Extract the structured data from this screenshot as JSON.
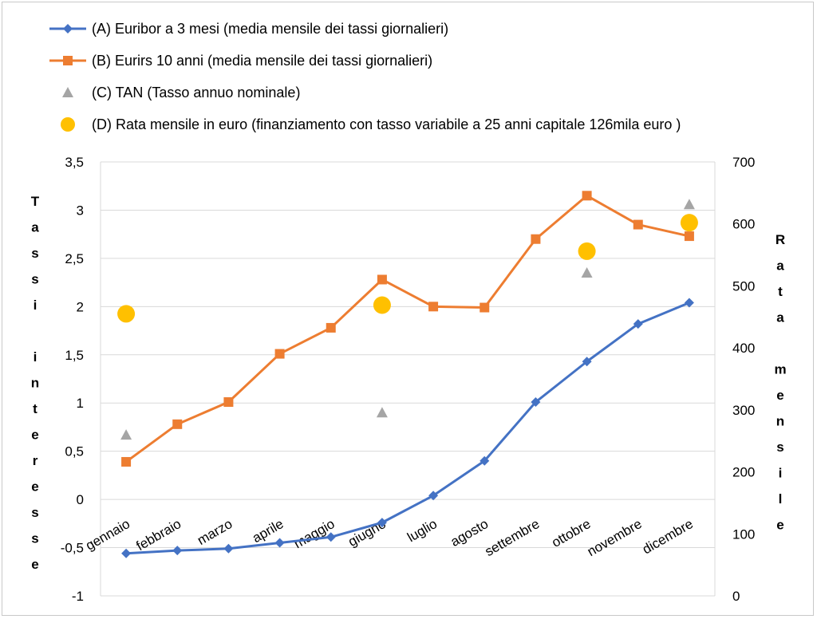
{
  "chart_data": {
    "type": "line",
    "categories": [
      "gennaio",
      "febbraio",
      "marzo",
      "aprile",
      "maggio",
      "giugno",
      "luglio",
      "agosto",
      "settembre",
      "ottobre",
      "novembre",
      "dicembre"
    ],
    "left_axis": {
      "label": "Tassi interesse",
      "ylim": [
        -1,
        3.5
      ],
      "ticks": [
        "3,5",
        "3",
        "2,5",
        "2",
        "1,5",
        "1",
        "0,5",
        "0",
        "-0,5",
        "-1"
      ]
    },
    "right_axis": {
      "label": "Rata mensile",
      "ylim": [
        0,
        700
      ],
      "ticks": [
        "700",
        "600",
        "500",
        "400",
        "300",
        "200",
        "100",
        "0"
      ]
    },
    "grid": true,
    "legend_position": "top",
    "series": [
      {
        "name": "(A) Euribor a 3 mesi (media mensile dei tassi giornalieri)",
        "axis": "left",
        "style": "line-diamond",
        "color": "#4472C4",
        "values": [
          -0.56,
          -0.53,
          -0.51,
          -0.45,
          -0.39,
          -0.24,
          0.04,
          0.4,
          1.01,
          1.43,
          1.82,
          2.04
        ]
      },
      {
        "name": "(B) Eurirs 10 anni (media mensile dei tassi giornalieri)",
        "axis": "left",
        "style": "line-square",
        "color": "#ED7D31",
        "values": [
          0.39,
          0.78,
          1.01,
          1.51,
          1.78,
          2.28,
          2.0,
          1.99,
          2.7,
          3.15,
          2.85,
          2.73
        ]
      },
      {
        "name": "(C) TAN (Tasso annuo nominale)",
        "axis": "left",
        "style": "triangle",
        "color": "#A5A5A5",
        "values": [
          0.67,
          null,
          null,
          null,
          null,
          0.9,
          null,
          null,
          null,
          2.35,
          null,
          3.06
        ]
      },
      {
        "name": "(D) Rata mensile in euro (finanziamento con tasso variabile a 25 anni capitale 126mila euro )",
        "axis": "right",
        "style": "circle",
        "color": "#FFC000",
        "values": [
          455,
          null,
          null,
          null,
          null,
          469,
          null,
          null,
          null,
          556,
          null,
          602
        ]
      }
    ]
  }
}
